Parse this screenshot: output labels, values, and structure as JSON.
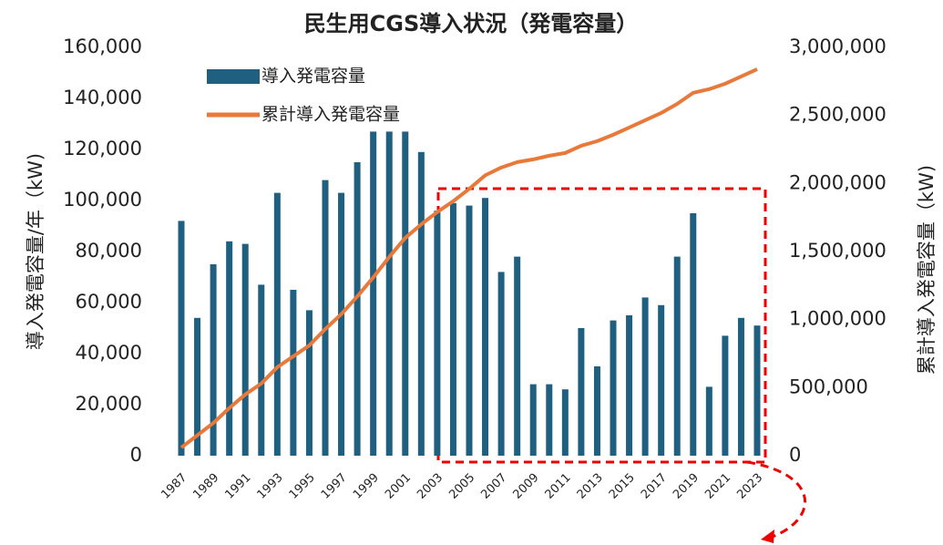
{
  "chart_data": {
    "type": "bar-line",
    "title": "民生用CGS導入状況（発電容量）",
    "y_label": "導入発電容量/年（kW)",
    "y2_label": "累計導入発電容量（kW)",
    "categories": [
      "1987",
      null,
      "1989",
      null,
      "1991",
      null,
      "1993",
      null,
      "1995",
      null,
      "1997",
      null,
      "1999",
      null,
      "2001",
      null,
      "2003",
      null,
      "2005",
      null,
      "2007",
      null,
      "2009",
      null,
      "2011",
      null,
      "2013",
      null,
      "2015",
      null,
      "2017",
      null,
      "2019",
      null,
      "2021",
      null,
      "2023"
    ],
    "series": [
      {
        "name": "導入発電容量",
        "type": "bar",
        "color": "#1f5f7f",
        "values": [
          92000,
          54000,
          75000,
          84000,
          83000,
          67000,
          103000,
          65000,
          57000,
          108000,
          103000,
          115000,
          127000,
          127000,
          127000,
          119000,
          96000,
          99000,
          98000,
          101000,
          72000,
          78000,
          28000,
          28000,
          26000,
          50000,
          35000,
          53000,
          55000,
          62000,
          59000,
          78000,
          95000,
          27000,
          47000,
          54000,
          51000
        ]
      },
      {
        "name": "累計導入発電容量",
        "type": "line",
        "axis": "y2",
        "color": "#e8793a",
        "values": [
          60000,
          150000,
          240000,
          350000,
          450000,
          530000,
          650000,
          730000,
          810000,
          930000,
          1040000,
          1170000,
          1310000,
          1460000,
          1600000,
          1700000,
          1790000,
          1870000,
          1960000,
          2060000,
          2117000,
          2157000,
          2177000,
          2204000,
          2224000,
          2277000,
          2311000,
          2358000,
          2411000,
          2465000,
          2518000,
          2585000,
          2666000,
          2693000,
          2733000,
          2786000,
          2840000
        ]
      }
    ],
    "ylim": [
      0,
      160000
    ],
    "yticks": [
      0,
      {
        "value": 20000,
        "label": "20,000"
      },
      {
        "value": 40000,
        "label": "40,000"
      },
      {
        "value": 60000,
        "label": "60,000"
      },
      {
        "value": 80000,
        "label": "80,000"
      },
      {
        "value": 100000,
        "label": "100,000"
      },
      {
        "value": 120000,
        "label": "120,000"
      },
      {
        "value": 140000,
        "label": "140,000"
      },
      {
        "value": 160000,
        "label": "160,000"
      }
    ],
    "y2lim": [
      0,
      3000000
    ],
    "y2ticks": [
      0,
      {
        "value": 500000,
        "label": "500,000"
      },
      {
        "value": 1000000,
        "label": "1,000,000"
      },
      {
        "value": 1500000,
        "label": "1,500,000"
      },
      {
        "value": 2000000,
        "label": "2,000,000"
      },
      {
        "value": 2500000,
        "label": "2,500,000"
      },
      {
        "value": 3000000,
        "label": "3,000,000"
      }
    ],
    "grid": false,
    "legend": "top-left"
  }
}
